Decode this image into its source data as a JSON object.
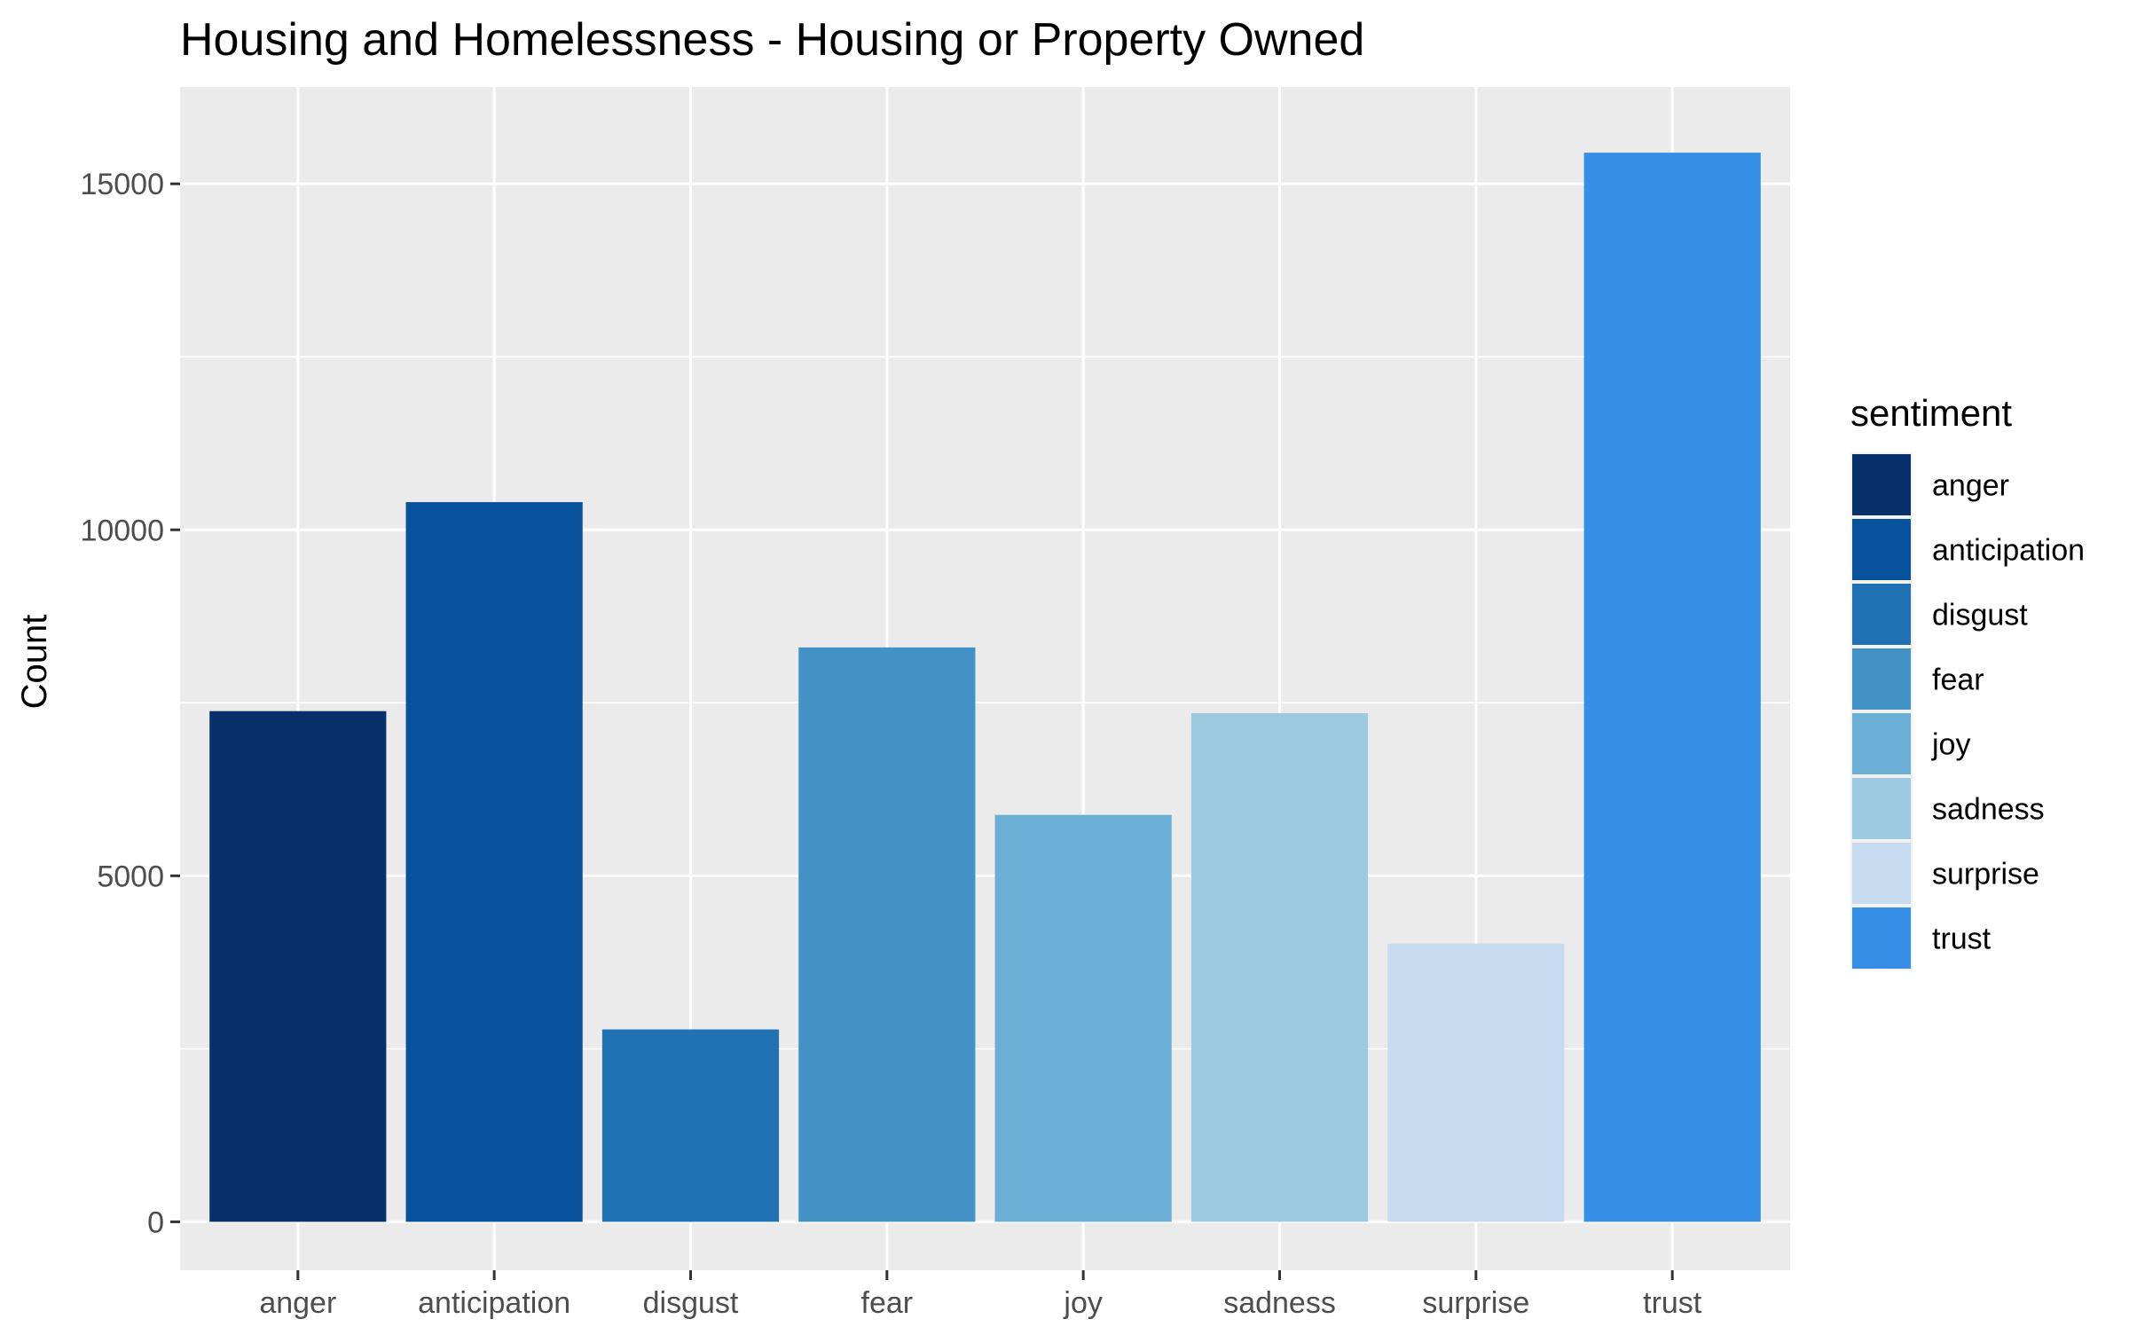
{
  "chart_data": {
    "type": "bar",
    "title": "Housing and Homelessness - Housing or Property Owned",
    "xlabel": "",
    "ylabel": "Count",
    "categories": [
      "anger",
      "anticipation",
      "disgust",
      "fear",
      "joy",
      "sadness",
      "surprise",
      "trust"
    ],
    "values": [
      7380,
      10400,
      2780,
      8300,
      5880,
      7350,
      4020,
      15450
    ],
    "colors": [
      "#08306B",
      "#08519C",
      "#2171B5",
      "#4292C6",
      "#6BAED6",
      "#9ECAE1",
      "#C6DBEF",
      "#368EE6"
    ],
    "ylim": [
      -700,
      16400
    ],
    "yticks": [
      0,
      5000,
      10000,
      15000
    ],
    "ytick_labels": [
      "0",
      "5000",
      "10000",
      "15000"
    ],
    "grid": true,
    "panel_background": "#EBEBEB",
    "grid_color": "#FFFFFF",
    "legend": {
      "title": "sentiment",
      "placement": "right",
      "entries": [
        "anger",
        "anticipation",
        "disgust",
        "fear",
        "joy",
        "sadness",
        "surprise",
        "trust"
      ]
    }
  }
}
